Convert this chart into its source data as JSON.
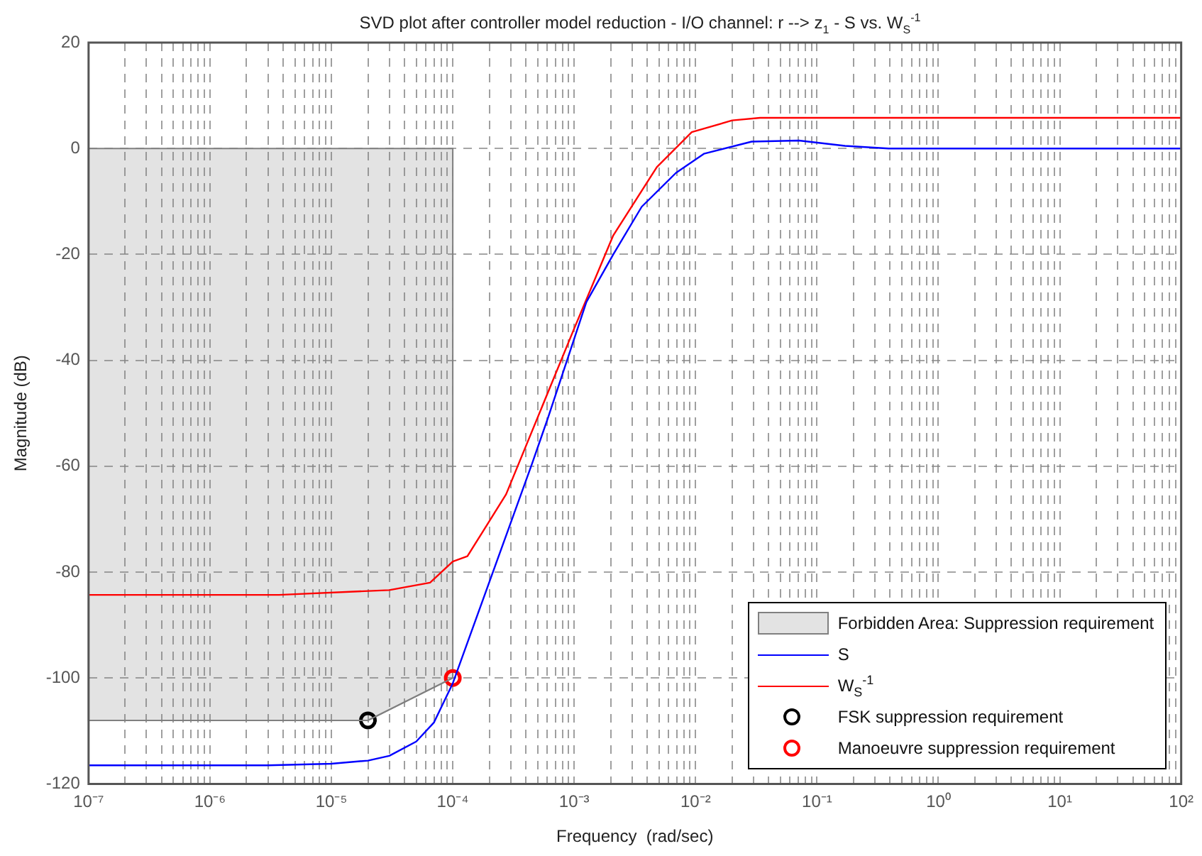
{
  "chart_data": {
    "type": "line",
    "title": "SVD plot after controller model reduction - I/O channel: r --> z$_{1}$  -  S vs. W$_{S}$$^{-1}$",
    "xlabel": "Frequency  (rad/sec)",
    "ylabel": "Magnitude (dB)",
    "log": "x",
    "grid": true,
    "legend": "bottom right",
    "marker": "none",
    "xlim": [
      1e-07,
      100
    ],
    "ylim": [
      -120,
      20
    ],
    "xticks": [
      {
        "value": 1e-07,
        "label": "10⁻⁷"
      },
      {
        "value": 2e-07,
        "label": null
      },
      {
        "value": 3e-07,
        "label": null
      },
      {
        "value": 4e-07,
        "label": null
      },
      {
        "value": 5e-07,
        "label": null
      },
      {
        "value": 6e-07,
        "label": null
      },
      {
        "value": 7e-07,
        "label": null
      },
      {
        "value": 8e-07,
        "label": null
      },
      {
        "value": 9e-07,
        "label": null
      },
      {
        "value": 1e-06,
        "label": "10⁻⁶"
      },
      {
        "value": 2e-06,
        "label": null
      },
      {
        "value": 3e-06,
        "label": null
      },
      {
        "value": 4e-06,
        "label": null
      },
      {
        "value": 5e-06,
        "label": null
      },
      {
        "value": 6e-06,
        "label": null
      },
      {
        "value": 7e-06,
        "label": null
      },
      {
        "value": 8e-06,
        "label": null
      },
      {
        "value": 9e-06,
        "label": null
      },
      {
        "value": 1e-05,
        "label": "10⁻⁵"
      },
      {
        "value": 2e-05,
        "label": null
      },
      {
        "value": 3e-05,
        "label": null
      },
      {
        "value": 4e-05,
        "label": null
      },
      {
        "value": 5e-05,
        "label": null
      },
      {
        "value": 6e-05,
        "label": null
      },
      {
        "value": 7e-05,
        "label": null
      },
      {
        "value": 8e-05,
        "label": null
      },
      {
        "value": 9e-05,
        "label": null
      },
      {
        "value": 0.0001,
        "label": "10⁻⁴"
      },
      {
        "value": 0.0002,
        "label": null
      },
      {
        "value": 0.0003,
        "label": null
      },
      {
        "value": 0.0004,
        "label": null
      },
      {
        "value": 0.0005,
        "label": null
      },
      {
        "value": 0.0006,
        "label": null
      },
      {
        "value": 0.0007,
        "label": null
      },
      {
        "value": 0.0008,
        "label": null
      },
      {
        "value": 0.0009,
        "label": null
      },
      {
        "value": 0.001,
        "label": "10⁻³"
      },
      {
        "value": 0.002,
        "label": null
      },
      {
        "value": 0.003,
        "label": null
      },
      {
        "value": 0.004,
        "label": null
      },
      {
        "value": 0.005,
        "label": null
      },
      {
        "value": 0.006,
        "label": null
      },
      {
        "value": 0.007,
        "label": null
      },
      {
        "value": 0.008,
        "label": null
      },
      {
        "value": 0.009,
        "label": null
      },
      {
        "value": 0.01,
        "label": "10⁻²"
      },
      {
        "value": 0.02,
        "label": null
      },
      {
        "value": 0.03,
        "label": null
      },
      {
        "value": 0.04,
        "label": null
      },
      {
        "value": 0.05,
        "label": null
      },
      {
        "value": 0.06,
        "label": null
      },
      {
        "value": 0.07,
        "label": null
      },
      {
        "value": 0.08,
        "label": null
      },
      {
        "value": 0.09,
        "label": null
      },
      {
        "value": 0.1,
        "label": "10⁻¹"
      },
      {
        "value": 0.2,
        "label": null
      },
      {
        "value": 0.3,
        "label": null
      },
      {
        "value": 0.4,
        "label": null
      },
      {
        "value": 0.5,
        "label": null
      },
      {
        "value": 0.6,
        "label": null
      },
      {
        "value": 0.7,
        "label": null
      },
      {
        "value": 0.8,
        "label": null
      },
      {
        "value": 0.9,
        "label": null
      },
      {
        "value": 1,
        "label": "10⁰"
      },
      {
        "value": 2,
        "label": null
      },
      {
        "value": 3,
        "label": null
      },
      {
        "value": 4,
        "label": null
      },
      {
        "value": 5,
        "label": null
      },
      {
        "value": 6,
        "label": null
      },
      {
        "value": 7,
        "label": null
      },
      {
        "value": 8,
        "label": null
      },
      {
        "value": 9,
        "label": null
      },
      {
        "value": 10,
        "label": "10¹"
      },
      {
        "value": 20,
        "label": null
      },
      {
        "value": 30,
        "label": null
      },
      {
        "value": 40,
        "label": null
      },
      {
        "value": 50,
        "label": null
      },
      {
        "value": 60,
        "label": null
      },
      {
        "value": 70,
        "label": null
      },
      {
        "value": 80,
        "label": null
      },
      {
        "value": 90,
        "label": null
      },
      {
        "value": 100,
        "label": "10²"
      }
    ],
    "yticks": [
      -120,
      -100,
      -80,
      -60,
      -40,
      -20,
      0,
      20
    ],
    "series": [
      {
        "name": "Forbidden Area: Suppression requirement",
        "color": "#808080",
        "x": [
          1e-07,
          2e-05,
          0.0001
        ],
        "values": [
          -108,
          -108,
          -100
        ],
        "lower": [
          -108,
          -108,
          -100
        ],
        "upper": [
          0,
          0,
          0
        ]
      },
      {
        "name": "S",
        "color": "#0000ff",
        "x": [
          1e-07,
          3e-06,
          1e-05,
          2e-05,
          3e-05,
          5e-05,
          7e-05,
          0.0001,
          0.00028,
          0.00045,
          0.00061,
          0.00126,
          0.0021,
          0.0036,
          0.0069,
          0.0117,
          0.029,
          0.071,
          0.17,
          0.39,
          100
        ],
        "values": [
          -116.5,
          -116.5,
          -116.2,
          -115.6,
          -114.7,
          -112,
          -108.4,
          -101,
          -72.6,
          -59.5,
          -50.8,
          -29,
          -20,
          -11,
          -4.6,
          -1,
          1.3,
          1.5,
          0.5,
          0,
          0
        ]
      },
      {
        "name": "W$_{S}$$^{-1}$",
        "color": "#ff0000",
        "x": [
          1e-07,
          3.7e-06,
          3e-05,
          6.5e-05,
          0.0001,
          0.000132,
          0.000174,
          0.000275,
          0.001,
          0.0021,
          0.0048,
          0.0093,
          0.02,
          0.034,
          100
        ],
        "values": [
          -84.3,
          -84.3,
          -83.4,
          -82,
          -78,
          -77,
          -72.6,
          -65.3,
          -34,
          -16.4,
          -3.5,
          3.1,
          5.3,
          5.8,
          5.8
        ]
      },
      {
        "name": "FSK suppression requirement",
        "type": "scatter",
        "marker": "circle",
        "color": "#000000",
        "x": [
          2e-05
        ],
        "values": [
          -108
        ]
      },
      {
        "name": "Manoeuvre suppression requirement",
        "type": "scatter",
        "marker": "circle",
        "color": "#ff0000",
        "x": [
          0.0001
        ],
        "values": [
          -100
        ]
      }
    ]
  }
}
